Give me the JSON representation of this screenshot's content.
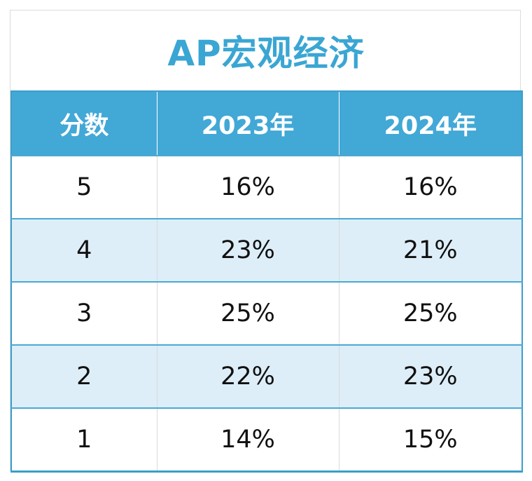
{
  "title": "AP宏观经济",
  "colors": {
    "accent": "#42a8d6",
    "title_text": "#3aa6d3",
    "header_text": "#ffffff",
    "stripe": "#ddeef8",
    "row_text": "#111111"
  },
  "chart_data": {
    "type": "table",
    "title": "AP宏观经济",
    "columns": [
      "分数",
      "2023年",
      "2024年"
    ],
    "rows": [
      [
        "5",
        "16%",
        "16%"
      ],
      [
        "4",
        "23%",
        "21%"
      ],
      [
        "3",
        "25%",
        "25%"
      ],
      [
        "2",
        "22%",
        "23%"
      ],
      [
        "1",
        "14%",
        "15%"
      ]
    ]
  }
}
